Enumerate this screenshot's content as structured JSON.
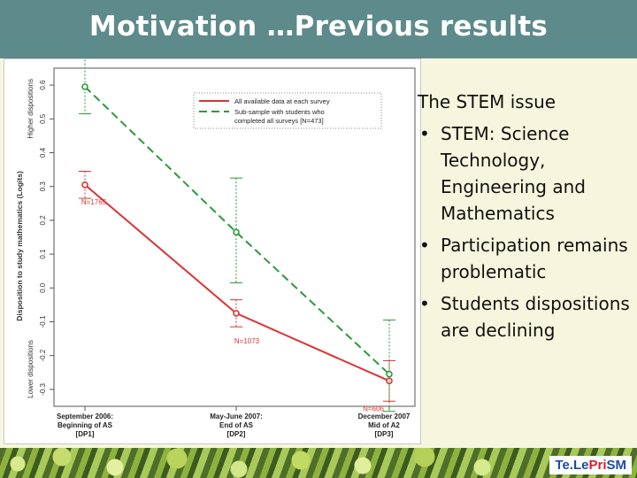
{
  "slide": {
    "title": "Motivation …Previous results",
    "text_heading": "The STEM issue",
    "bullets": [
      "STEM: Science Technology, Engineering and Mathematics",
      "Participation remains problematic",
      "Students dispositions are declining"
    ],
    "bullet_glyph": "•",
    "brand": {
      "part1": "Te.Le",
      "part2": "Pri",
      "part3": "SM"
    },
    "colors": {
      "title_bar": "#5d8a8a",
      "background": "#f6f6de",
      "series1": "#dd3333",
      "series2": "#2a9a3a"
    }
  },
  "chart_data": {
    "type": "line",
    "ylabel": "Disposition to study mathematics (Logits)",
    "y_side_labels": [
      "Higher dispositions",
      "Lower dispositions"
    ],
    "ylim": [
      -0.35,
      0.65
    ],
    "yticks": [
      "0.6",
      "0.5",
      "0.4",
      "0.3",
      "0.2",
      "0.1",
      "0.0",
      "-0.1",
      "-0.2",
      "-0.3"
    ],
    "categories": [
      [
        "September 2006:",
        "Beginning of AS",
        "[DP1]"
      ],
      [
        "May-June 2007:",
        "End of AS",
        "[DP2]"
      ],
      [
        "December 2007",
        "Mid of A2",
        "[DP3]"
      ]
    ],
    "legend_position": "top-right",
    "series": [
      {
        "name": "All available data at each survey",
        "values": [
          0.305,
          -0.075,
          -0.275
        ],
        "err_low": [
          0.265,
          -0.115,
          -0.335
        ],
        "err_high": [
          0.345,
          -0.035,
          -0.215
        ],
        "point_labels": [
          "N=1765",
          "N=1073",
          "N=606"
        ]
      },
      {
        "name": "Sub-sample with students who completed all surveys [N=473]",
        "values": [
          0.595,
          0.165,
          -0.255
        ],
        "err_low": [
          0.515,
          0.015,
          -0.365
        ],
        "err_high": [
          0.685,
          0.325,
          -0.095
        ]
      }
    ]
  }
}
